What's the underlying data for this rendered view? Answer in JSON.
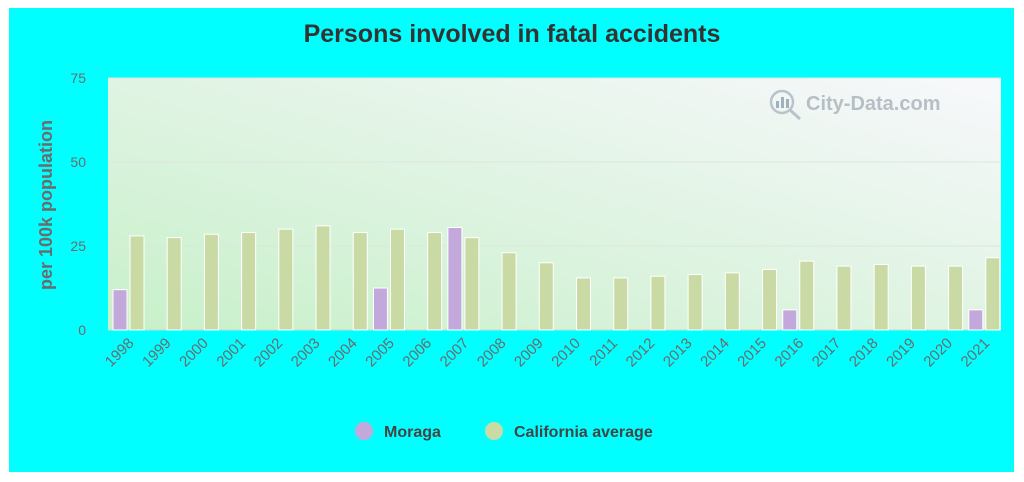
{
  "watermark": "City-Data.com",
  "colors": {
    "moraga": "#c3a8dc",
    "california": "#c9daa4",
    "background": "#00ffff"
  },
  "chart_data": {
    "type": "bar",
    "title": "Persons involved in fatal accidents",
    "xlabel": "",
    "ylabel": "per 100k population",
    "ylim": [
      0,
      75
    ],
    "yticks": [
      0,
      25,
      50,
      75
    ],
    "grid": true,
    "legend_position": "bottom",
    "categories": [
      "1998",
      "1999",
      "2000",
      "2001",
      "2002",
      "2003",
      "2004",
      "2005",
      "2006",
      "2007",
      "2008",
      "2009",
      "2010",
      "2011",
      "2012",
      "2013",
      "2014",
      "2015",
      "2016",
      "2017",
      "2018",
      "2019",
      "2020",
      "2021"
    ],
    "series": [
      {
        "name": "Moraga",
        "color": "#c3a8dc",
        "values": [
          12,
          null,
          null,
          null,
          null,
          null,
          null,
          12.5,
          null,
          30.5,
          null,
          null,
          null,
          null,
          null,
          null,
          null,
          null,
          6,
          null,
          null,
          null,
          null,
          6
        ]
      },
      {
        "name": "California average",
        "color": "#c9daa4",
        "values": [
          28,
          27.5,
          28.5,
          29,
          30,
          31,
          29,
          30,
          29,
          27.5,
          23,
          20,
          15.5,
          15.5,
          16,
          16.5,
          17,
          18,
          20.5,
          19,
          19.5,
          19,
          19,
          21.5
        ]
      }
    ]
  }
}
